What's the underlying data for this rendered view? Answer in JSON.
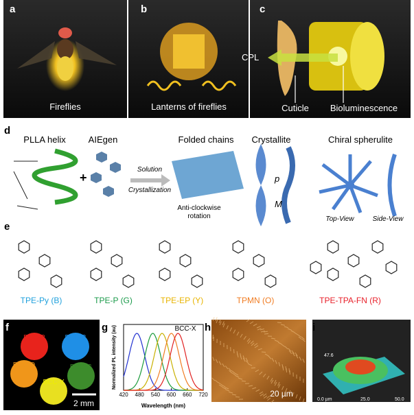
{
  "panels": {
    "a": {
      "letter": "a",
      "caption": "Fireflies"
    },
    "b": {
      "letter": "b",
      "caption": "Lanterns of fireflies"
    },
    "c": {
      "letter": "c",
      "arrow": "CPL",
      "left": "Cuticle",
      "right": "Bioluminescence"
    },
    "d": {
      "letter": "d",
      "helix": "PLLA helix",
      "aiegen": "AIEgen",
      "plus": "+",
      "step1": "Solution",
      "step2": "Crystallization",
      "folded": "Folded chains",
      "rotation1": "Anti-clockwise",
      "rotation2": "rotation",
      "crystallite": "Crystallite",
      "pitch": "p",
      "handed": "M",
      "spherulite": "Chiral spherulite",
      "top": "Top-View",
      "side": "Side-View"
    },
    "e": {
      "letter": "e",
      "compounds": [
        {
          "label": "TPE-Py (B)",
          "color": "#1fa0dc"
        },
        {
          "label": "TPE-P (G)",
          "color": "#1a9a4a"
        },
        {
          "label": "TPE-EP (Y)",
          "color": "#e8b400"
        },
        {
          "label": "TPMN (O)",
          "color": "#f07c22"
        },
        {
          "label": "TPE-TPA-FN (R)",
          "color": "#e8202a"
        }
      ]
    },
    "f": {
      "letter": "f",
      "samples": [
        {
          "label": "BCC-R",
          "color": "#e8231c"
        },
        {
          "label": "BCC-B",
          "color": "#1f8fe6"
        },
        {
          "label": "BCC-O",
          "color": "#f0961a"
        },
        {
          "label": "BCC-G",
          "color": "#3d8c2c"
        },
        {
          "label": "BCC-Y",
          "color": "#e8e020"
        }
      ],
      "scale": "2 mm"
    },
    "g": {
      "letter": "g",
      "chart": {
        "type": "line",
        "title": "BCC-X",
        "xlabel": "Wavelength (nm)",
        "ylabel": "Normalized PL intensity (au)",
        "xlim": [
          420,
          720
        ],
        "xticks": [
          420,
          480,
          540,
          600,
          660,
          720
        ],
        "series": [
          {
            "color": "#2030d0",
            "peak": 470
          },
          {
            "color": "#1a9a3a",
            "peak": 530
          },
          {
            "color": "#c8b000",
            "peak": 565
          },
          {
            "color": "#f07c22",
            "peak": 600
          },
          {
            "color": "#e02020",
            "peak": 625
          }
        ]
      }
    },
    "h": {
      "letter": "h",
      "scale": "20 µm"
    },
    "i": {
      "letter": "i",
      "z": "47.6",
      "x0": "0.0 µm",
      "x1": "25.0",
      "x2": "50.0"
    }
  }
}
